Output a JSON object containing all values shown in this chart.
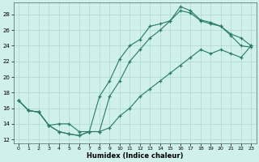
{
  "xlabel": "Humidex (Indice chaleur)",
  "xlim": [
    -0.5,
    23.5
  ],
  "ylim": [
    11.5,
    29.5
  ],
  "xticks": [
    0,
    1,
    2,
    3,
    4,
    5,
    6,
    7,
    8,
    9,
    10,
    11,
    12,
    13,
    14,
    15,
    16,
    17,
    18,
    19,
    20,
    21,
    22,
    23
  ],
  "yticks": [
    12,
    14,
    16,
    18,
    20,
    22,
    24,
    26,
    28
  ],
  "background_color": "#cff0eb",
  "grid_color": "#aad8d0",
  "line_color": "#2a7a6a",
  "line1_x": [
    0,
    1,
    2,
    3,
    4,
    5,
    6,
    7,
    8,
    9,
    10,
    11,
    12,
    13,
    14,
    15,
    16,
    17,
    18,
    19,
    20,
    21,
    22,
    23
  ],
  "line1_y": [
    17,
    15.7,
    15.5,
    13.8,
    13.0,
    12.7,
    12.5,
    13.0,
    17.5,
    19.5,
    22.3,
    24.0,
    24.8,
    26.5,
    26.8,
    27.2,
    29.0,
    28.5,
    27.3,
    27.0,
    26.5,
    25.3,
    24.0,
    23.8
  ],
  "line2_x": [
    0,
    1,
    2,
    3,
    4,
    5,
    6,
    7,
    8,
    9,
    10,
    11,
    12,
    13,
    14,
    15,
    16,
    17,
    18,
    19,
    20,
    21,
    22,
    23
  ],
  "line2_y": [
    17,
    15.7,
    15.5,
    13.8,
    14.0,
    14.0,
    13.0,
    13.0,
    13.0,
    17.5,
    19.5,
    22.0,
    23.5,
    25.0,
    26.0,
    27.2,
    28.5,
    28.2,
    27.2,
    26.8,
    26.5,
    25.5,
    25.0,
    24.0
  ],
  "line3_x": [
    0,
    1,
    2,
    3,
    4,
    5,
    6,
    7,
    8,
    9,
    10,
    11,
    12,
    13,
    14,
    15,
    16,
    17,
    18,
    19,
    20,
    21,
    22,
    23
  ],
  "line3_y": [
    17,
    15.7,
    15.5,
    13.8,
    13.0,
    12.7,
    12.5,
    13.0,
    13.0,
    13.5,
    15.0,
    16.0,
    17.5,
    18.5,
    19.5,
    20.5,
    21.5,
    22.5,
    23.5,
    23.0,
    23.5,
    23.0,
    22.5,
    24.0
  ]
}
